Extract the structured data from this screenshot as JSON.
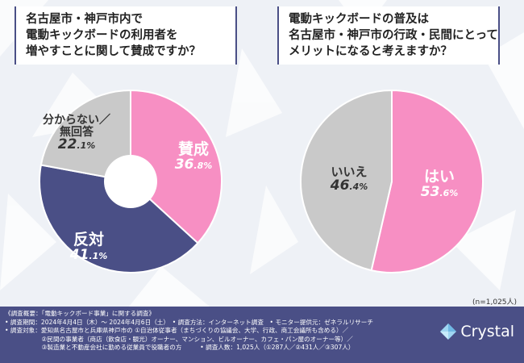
{
  "questions": {
    "q1": [
      "名古屋市・神戸市内で",
      "電動キックボードの利用者を",
      "増やすことに関して賛成ですか？"
    ],
    "q2": [
      "電動キックボードの普及は",
      "名古屋市・神戸市の行政・民間にとって",
      "メリットになると考えますか？"
    ]
  },
  "chart_data": [
    {
      "type": "pie",
      "donut": true,
      "labels": [
        "賛成",
        "反対",
        "分からない／無回答"
      ],
      "values": [
        36.8,
        41.1,
        22.1
      ],
      "colors": [
        "#f78fc3",
        "#4a4f86",
        "#c9c9c9"
      ]
    },
    {
      "type": "pie",
      "donut": false,
      "labels": [
        "はい",
        "いいえ"
      ],
      "values": [
        53.6,
        46.4
      ],
      "colors": [
        "#f78fc3",
        "#c9c9c9"
      ]
    }
  ],
  "labels": {
    "c1_yes": "賛成",
    "c1_yes_pct_int": "36",
    "c1_yes_pct_dec": ".8%",
    "c1_no": "反対",
    "c1_no_pct_int": "41",
    "c1_no_pct_dec": ".1%",
    "c1_unk_line1": "分からない／",
    "c1_unk_line2": "無回答",
    "c1_unk_pct_int": "22",
    "c1_unk_pct_dec": ".1%",
    "c2_yes": "はい",
    "c2_yes_pct_int": "53",
    "c2_yes_pct_dec": ".6%",
    "c2_no": "いいえ",
    "c2_no_pct_int": "46",
    "c2_no_pct_dec": ".4%"
  },
  "n_note": "(n=1,025人)",
  "footer": [
    "《調査概要：「電動キックボード事業」に関する調査》",
    "• 調査期間：2024年4月4日（木）～ 2024年4月6日（土）　• 調査方法：インターネット調査　• モニター提供元：ゼネラルリサーチ",
    "• 調査対象：愛知県名古屋市と兵庫県神戸市の ①自治体従事者（まちづくりの協議会、大学、行政、商工会議所も含める）／",
    "　　　　　　②民間の事業者（商店（飲食店・観光）オーナー、マンション、ビルオーナー、カフェ・パン屋のオーナー等）／",
    "　　　　　　③製造業と不動産会社に勤める従業員で役職者の方　　　• 調査人数：1,025人（①287人／②431人／③307人）"
  ],
  "logo": "Crystal",
  "logo_icon": "diamond-logo-icon"
}
